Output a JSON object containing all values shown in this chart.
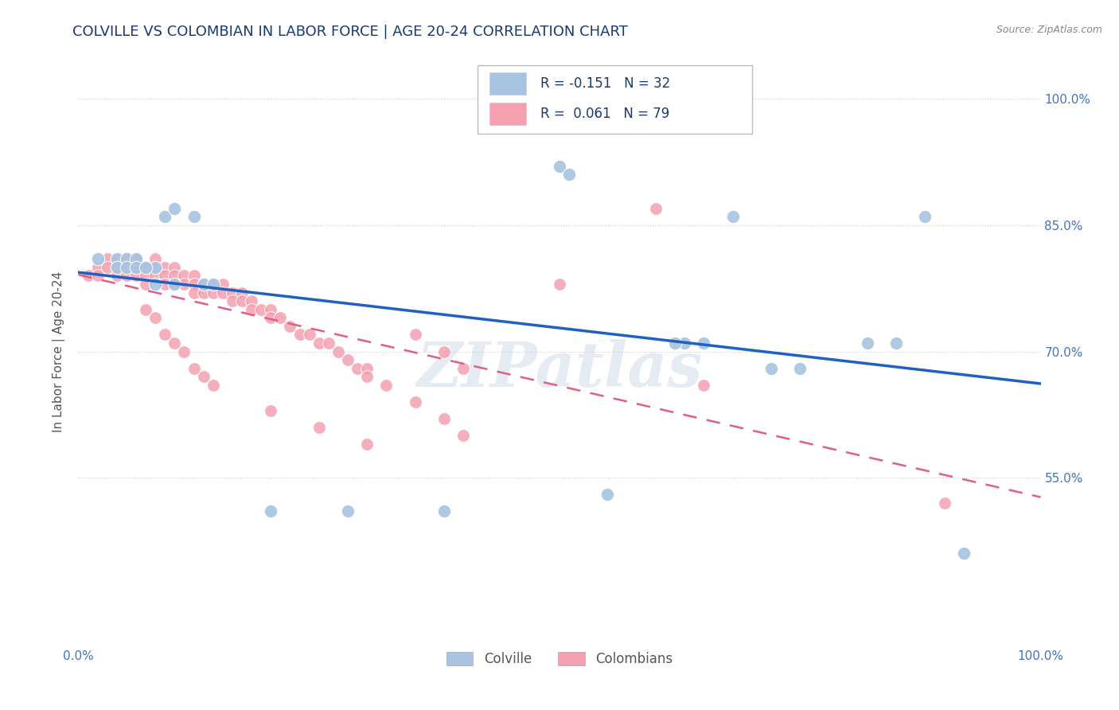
{
  "title": "COLVILLE VS COLOMBIAN IN LABOR FORCE | AGE 20-24 CORRELATION CHART",
  "source": "Source: ZipAtlas.com",
  "ylabel": "In Labor Force | Age 20-24",
  "xlim": [
    0.0,
    1.0
  ],
  "ylim": [
    0.35,
    1.05
  ],
  "yticks": [
    0.55,
    0.7,
    0.85,
    1.0
  ],
  "ytick_labels": [
    "55.0%",
    "70.0%",
    "85.0%",
    "100.0%"
  ],
  "colville_R": -0.151,
  "colville_N": 32,
  "colombian_R": 0.061,
  "colombian_N": 79,
  "colville_color": "#a8c4e0",
  "colombian_color": "#f4a0b0",
  "colville_line_color": "#2060c0",
  "colombian_line_color": "#e06080",
  "watermark": "ZIPatlas",
  "colville_x": [
    0.02,
    0.04,
    0.04,
    0.05,
    0.05,
    0.06,
    0.06,
    0.08,
    0.09,
    0.1,
    0.12,
    0.13,
    0.14,
    0.2,
    0.28,
    0.38,
    0.5,
    0.51,
    0.63,
    0.65,
    0.68,
    0.72,
    0.75,
    0.82,
    0.85,
    0.88,
    0.92,
    0.07,
    0.08,
    0.1,
    0.55,
    0.62
  ],
  "colville_y": [
    0.81,
    0.81,
    0.8,
    0.81,
    0.8,
    0.81,
    0.8,
    0.8,
    0.86,
    0.87,
    0.86,
    0.78,
    0.78,
    0.51,
    0.51,
    0.51,
    0.92,
    0.91,
    0.71,
    0.71,
    0.86,
    0.68,
    0.68,
    0.71,
    0.71,
    0.86,
    0.46,
    0.8,
    0.78,
    0.78,
    0.53,
    0.71
  ],
  "colombian_x": [
    0.01,
    0.02,
    0.02,
    0.03,
    0.03,
    0.04,
    0.04,
    0.04,
    0.05,
    0.05,
    0.05,
    0.06,
    0.06,
    0.06,
    0.07,
    0.07,
    0.07,
    0.08,
    0.08,
    0.08,
    0.09,
    0.09,
    0.09,
    0.1,
    0.1,
    0.1,
    0.11,
    0.11,
    0.12,
    0.12,
    0.12,
    0.13,
    0.13,
    0.14,
    0.14,
    0.15,
    0.15,
    0.16,
    0.16,
    0.17,
    0.17,
    0.18,
    0.18,
    0.19,
    0.2,
    0.2,
    0.21,
    0.22,
    0.23,
    0.24,
    0.25,
    0.26,
    0.27,
    0.28,
    0.29,
    0.3,
    0.3,
    0.32,
    0.35,
    0.38,
    0.4,
    0.07,
    0.08,
    0.09,
    0.1,
    0.11,
    0.12,
    0.13,
    0.14,
    0.35,
    0.38,
    0.4,
    0.2,
    0.25,
    0.3,
    0.6,
    0.5,
    0.65,
    0.9
  ],
  "colombian_y": [
    0.79,
    0.8,
    0.79,
    0.81,
    0.8,
    0.81,
    0.8,
    0.79,
    0.81,
    0.8,
    0.79,
    0.81,
    0.8,
    0.79,
    0.8,
    0.79,
    0.78,
    0.81,
    0.8,
    0.79,
    0.8,
    0.79,
    0.78,
    0.8,
    0.79,
    0.78,
    0.79,
    0.78,
    0.79,
    0.78,
    0.77,
    0.78,
    0.77,
    0.78,
    0.77,
    0.78,
    0.77,
    0.77,
    0.76,
    0.77,
    0.76,
    0.76,
    0.75,
    0.75,
    0.75,
    0.74,
    0.74,
    0.73,
    0.72,
    0.72,
    0.71,
    0.71,
    0.7,
    0.69,
    0.68,
    0.68,
    0.67,
    0.66,
    0.64,
    0.62,
    0.6,
    0.75,
    0.74,
    0.72,
    0.71,
    0.7,
    0.68,
    0.67,
    0.66,
    0.72,
    0.7,
    0.68,
    0.63,
    0.61,
    0.59,
    0.87,
    0.78,
    0.66,
    0.52
  ]
}
